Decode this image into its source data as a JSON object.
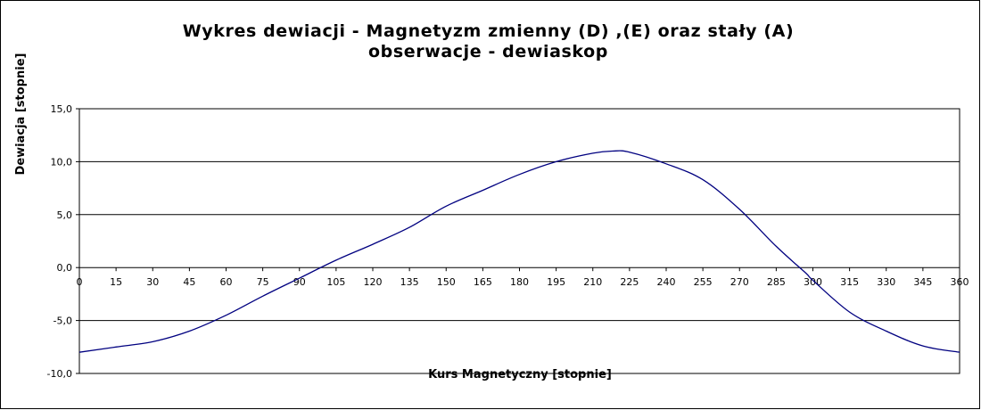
{
  "chart_data": {
    "type": "line",
    "title": "Wykres dewiacji  - Magnetyzm zmienny  (D) ,(E) oraz stały  (A)",
    "subtitle": "obserwacje - dewiaskop",
    "xlabel": "Kurs Magnetyczny   [stopnie]",
    "ylabel": "Dewiacja   [stopnie]",
    "xlim": [
      0,
      360
    ],
    "ylim": [
      -10,
      15
    ],
    "x_ticks": [
      "0",
      "15",
      "30",
      "45",
      "60",
      "75",
      "90",
      "105",
      "120",
      "135",
      "150",
      "165",
      "180",
      "195",
      "210",
      "225",
      "240",
      "255",
      "270",
      "285",
      "300",
      "315",
      "330",
      "345",
      "360"
    ],
    "y_ticks": [
      "15,0",
      "10,0",
      "5,0",
      "0,0",
      "-5,0",
      "-10,0"
    ],
    "grid": "horizontal",
    "line_color": "#000080",
    "series": [
      {
        "x": [
          0,
          15,
          30,
          45,
          60,
          75,
          90,
          105,
          120,
          135,
          150,
          165,
          180,
          195,
          210,
          218,
          225,
          240,
          255,
          270,
          285,
          297,
          300,
          315,
          330,
          345,
          360
        ],
        "y": [
          -8.0,
          -7.5,
          -7.0,
          -6.0,
          -4.5,
          -2.7,
          -1.0,
          0.7,
          2.2,
          3.8,
          5.8,
          7.3,
          8.8,
          10.0,
          10.8,
          11.0,
          10.9,
          9.8,
          8.3,
          5.5,
          2.0,
          -0.5,
          -1.2,
          -4.2,
          -6.0,
          -7.4,
          -8.0
        ]
      }
    ]
  }
}
